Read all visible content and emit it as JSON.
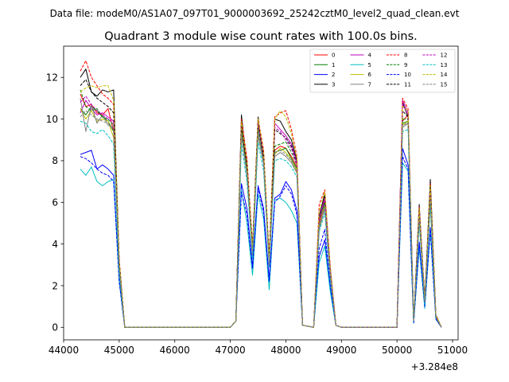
{
  "chart_data": {
    "type": "line",
    "suptitle": "Data file: modeM0/AS1A07_097T01_9000003692_25242cztM0_level2_quad_clean.evt",
    "title": "Quadrant 3 module wise count rates with 100.0s bins.",
    "xlabel": "",
    "ylabel": "",
    "x_offset_label": "+3.284e8",
    "xlim": [
      44000,
      51100
    ],
    "ylim": [
      -0.6,
      13.5
    ],
    "x_ticks": [
      44000,
      45000,
      46000,
      47000,
      48000,
      49000,
      50000,
      51000
    ],
    "y_ticks": [
      0,
      2,
      4,
      6,
      8,
      10,
      12
    ],
    "grid": false,
    "legend": {
      "placement": "top-right",
      "columns": 4
    },
    "x": [
      44300,
      44400,
      44500,
      44600,
      44700,
      44800,
      44900,
      45000,
      45100,
      45200,
      45300,
      45400,
      45500,
      45600,
      45700,
      45800,
      45900,
      46000,
      46100,
      46200,
      46300,
      46400,
      46500,
      46600,
      46700,
      46800,
      46900,
      47000,
      47100,
      47200,
      47300,
      47400,
      47500,
      47600,
      47700,
      47800,
      47900,
      48000,
      48100,
      48200,
      48300,
      48400,
      48500,
      48600,
      48700,
      48800,
      48900,
      49000,
      49100,
      49200,
      49300,
      49400,
      49500,
      49600,
      49700,
      49800,
      49900,
      50000,
      50100,
      50200,
      50300,
      50400,
      50500,
      50600,
      50700,
      50800
    ],
    "series": [
      {
        "name": "0",
        "color": "#ff0000",
        "dash": "solid",
        "values": [
          11.2,
          10.6,
          10.7,
          10.3,
          10.2,
          10.5,
          9.4,
          3.0,
          0.0,
          0.0,
          0.0,
          0.0,
          0.0,
          0.0,
          0.0,
          0.0,
          0.0,
          0.0,
          0.0,
          0.0,
          0.0,
          0.0,
          0.0,
          0.0,
          0.0,
          0.0,
          0.0,
          0.0,
          0.3,
          9.8,
          7.8,
          3.6,
          9.9,
          8.1,
          3.1,
          8.5,
          8.7,
          8.6,
          8.2,
          7.7,
          0.1,
          0.05,
          0.0,
          5.0,
          6.1,
          2.6,
          0.1,
          0.0,
          0.0,
          0.0,
          0.0,
          0.0,
          0.0,
          0.0,
          0.0,
          0.0,
          0.0,
          0.0,
          9.9,
          10.2,
          0.3,
          5.4,
          1.2,
          6.3,
          0.5,
          0.0
        ]
      },
      {
        "name": "1",
        "color": "#008000",
        "dash": "solid",
        "values": [
          10.5,
          10.2,
          10.6,
          10.4,
          10.1,
          9.9,
          9.4,
          2.9,
          0.0,
          0.0,
          0.0,
          0.0,
          0.0,
          0.0,
          0.0,
          0.0,
          0.0,
          0.0,
          0.0,
          0.0,
          0.0,
          0.0,
          0.0,
          0.0,
          0.0,
          0.0,
          0.0,
          0.0,
          0.3,
          9.5,
          7.5,
          3.5,
          9.4,
          8.0,
          3.0,
          8.4,
          8.5,
          8.6,
          8.1,
          7.6,
          0.1,
          0.05,
          0.0,
          4.8,
          5.9,
          2.5,
          0.1,
          0.0,
          0.0,
          0.0,
          0.0,
          0.0,
          0.0,
          0.0,
          0.0,
          0.0,
          0.0,
          0.0,
          9.8,
          9.9,
          0.3,
          5.3,
          1.2,
          6.2,
          0.5,
          0.0
        ]
      },
      {
        "name": "2",
        "color": "#0000ff",
        "dash": "solid",
        "values": [
          8.3,
          8.4,
          8.5,
          7.6,
          7.8,
          7.6,
          7.3,
          2.3,
          0.0,
          0.0,
          0.0,
          0.0,
          0.0,
          0.0,
          0.0,
          0.0,
          0.0,
          0.0,
          0.0,
          0.0,
          0.0,
          0.0,
          0.0,
          0.0,
          0.0,
          0.0,
          0.0,
          0.0,
          0.3,
          6.9,
          5.7,
          2.9,
          6.8,
          5.7,
          2.3,
          6.2,
          6.4,
          7.0,
          6.6,
          5.6,
          0.1,
          0.05,
          0.0,
          3.4,
          4.2,
          1.9,
          0.1,
          0.0,
          0.0,
          0.0,
          0.0,
          0.0,
          0.0,
          0.0,
          0.0,
          0.0,
          0.0,
          0.0,
          8.6,
          7.8,
          0.2,
          4.1,
          1.0,
          4.8,
          0.4,
          0.0
        ]
      },
      {
        "name": "3",
        "color": "#000000",
        "dash": "solid",
        "values": [
          12.0,
          12.4,
          11.3,
          11.1,
          11.4,
          11.3,
          11.4,
          3.2,
          0.0,
          0.0,
          0.0,
          0.0,
          0.0,
          0.0,
          0.0,
          0.0,
          0.0,
          0.0,
          0.0,
          0.0,
          0.0,
          0.0,
          0.0,
          0.0,
          0.0,
          0.0,
          0.0,
          0.0,
          0.3,
          10.2,
          7.8,
          3.8,
          10.1,
          8.0,
          3.3,
          10.0,
          9.9,
          9.4,
          9.0,
          8.0,
          0.1,
          0.05,
          0.0,
          5.3,
          6.4,
          2.8,
          0.1,
          0.0,
          0.0,
          0.0,
          0.0,
          0.0,
          0.0,
          0.0,
          0.0,
          0.0,
          0.0,
          0.0,
          10.8,
          10.1,
          0.3,
          5.9,
          1.3,
          7.1,
          0.6,
          0.0
        ]
      },
      {
        "name": "4",
        "color": "#bf00bf",
        "dash": "solid",
        "values": [
          10.3,
          10.9,
          10.5,
          10.2,
          10.3,
          10.1,
          9.9,
          3.1,
          0.0,
          0.0,
          0.0,
          0.0,
          0.0,
          0.0,
          0.0,
          0.0,
          0.0,
          0.0,
          0.0,
          0.0,
          0.0,
          0.0,
          0.0,
          0.0,
          0.0,
          0.0,
          0.0,
          0.0,
          0.3,
          9.9,
          8.0,
          3.7,
          9.9,
          8.3,
          3.2,
          9.8,
          9.5,
          9.2,
          8.8,
          7.9,
          0.1,
          0.05,
          0.0,
          5.1,
          6.2,
          2.7,
          0.1,
          0.0,
          0.0,
          0.0,
          0.0,
          0.0,
          0.0,
          0.0,
          0.0,
          0.0,
          0.0,
          0.0,
          10.9,
          10.3,
          0.3,
          5.7,
          1.3,
          6.6,
          0.5,
          0.0
        ]
      },
      {
        "name": "5",
        "color": "#00bfbf",
        "dash": "solid",
        "values": [
          7.6,
          7.3,
          7.7,
          7.0,
          6.8,
          7.0,
          7.1,
          2.2,
          0.0,
          0.0,
          0.0,
          0.0,
          0.0,
          0.0,
          0.0,
          0.0,
          0.0,
          0.0,
          0.0,
          0.0,
          0.0,
          0.0,
          0.0,
          0.0,
          0.0,
          0.0,
          0.0,
          0.0,
          0.3,
          6.6,
          5.0,
          2.5,
          6.4,
          5.2,
          1.8,
          6.1,
          6.2,
          6.0,
          5.6,
          5.0,
          0.1,
          0.05,
          0.0,
          3.1,
          3.9,
          1.7,
          0.1,
          0.0,
          0.0,
          0.0,
          0.0,
          0.0,
          0.0,
          0.0,
          0.0,
          0.0,
          0.0,
          0.0,
          7.9,
          7.5,
          0.2,
          3.8,
          0.9,
          4.6,
          0.4,
          0.0
        ]
      },
      {
        "name": "6",
        "color": "#bfbf00",
        "dash": "solid",
        "values": [
          10.5,
          10.0,
          10.4,
          9.9,
          10.0,
          9.9,
          9.1,
          2.8,
          0.0,
          0.0,
          0.0,
          0.0,
          0.0,
          0.0,
          0.0,
          0.0,
          0.0,
          0.0,
          0.0,
          0.0,
          0.0,
          0.0,
          0.0,
          0.0,
          0.0,
          0.0,
          0.0,
          0.0,
          0.3,
          9.4,
          7.4,
          3.5,
          9.3,
          7.9,
          3.0,
          8.3,
          8.6,
          8.4,
          8.0,
          7.5,
          0.1,
          0.05,
          0.0,
          4.9,
          5.8,
          2.5,
          0.1,
          0.0,
          0.0,
          0.0,
          0.0,
          0.0,
          0.0,
          0.0,
          0.0,
          0.0,
          0.0,
          0.0,
          9.7,
          9.9,
          0.3,
          5.2,
          1.2,
          6.1,
          0.5,
          0.0
        ]
      },
      {
        "name": "7",
        "color": "#808080",
        "dash": "solid",
        "values": [
          11.0,
          9.4,
          10.7,
          9.8,
          10.2,
          9.7,
          9.6,
          3.0,
          0.0,
          0.0,
          0.0,
          0.0,
          0.0,
          0.0,
          0.0,
          0.0,
          0.0,
          0.0,
          0.0,
          0.0,
          0.0,
          0.0,
          0.0,
          0.0,
          0.0,
          0.0,
          0.0,
          0.0,
          0.3,
          9.2,
          7.3,
          3.4,
          9.2,
          7.8,
          3.0,
          8.2,
          8.4,
          8.2,
          7.9,
          7.4,
          0.1,
          0.05,
          0.0,
          4.7,
          5.7,
          2.4,
          0.1,
          0.0,
          0.0,
          0.0,
          0.0,
          0.0,
          0.0,
          0.0,
          0.0,
          0.0,
          0.0,
          0.0,
          9.6,
          9.8,
          0.3,
          5.1,
          1.2,
          6.0,
          0.5,
          0.0
        ]
      },
      {
        "name": "8",
        "color": "#ff0000",
        "dash": "dashed",
        "values": [
          12.3,
          12.8,
          12.0,
          11.6,
          11.2,
          11.0,
          10.7,
          3.3,
          0.0,
          0.0,
          0.0,
          0.0,
          0.0,
          0.0,
          0.0,
          0.0,
          0.0,
          0.0,
          0.0,
          0.0,
          0.0,
          0.0,
          0.0,
          0.0,
          0.0,
          0.0,
          0.0,
          0.0,
          0.3,
          10.0,
          8.1,
          3.9,
          10.0,
          8.5,
          3.4,
          10.1,
          10.3,
          10.4,
          9.5,
          8.2,
          0.1,
          0.05,
          0.0,
          5.9,
          6.6,
          2.9,
          0.1,
          0.0,
          0.0,
          0.0,
          0.0,
          0.0,
          0.0,
          0.0,
          0.0,
          0.0,
          0.0,
          0.0,
          11.0,
          10.5,
          0.3,
          5.8,
          1.3,
          6.9,
          0.6,
          0.0
        ]
      },
      {
        "name": "9",
        "color": "#008000",
        "dash": "dashed",
        "values": [
          11.4,
          10.6,
          10.4,
          10.5,
          10.1,
          10.0,
          9.7,
          3.0,
          0.0,
          0.0,
          0.0,
          0.0,
          0.0,
          0.0,
          0.0,
          0.0,
          0.0,
          0.0,
          0.0,
          0.0,
          0.0,
          0.0,
          0.0,
          0.0,
          0.0,
          0.0,
          0.0,
          0.0,
          0.3,
          9.6,
          7.6,
          3.6,
          9.6,
          8.1,
          3.1,
          8.7,
          8.8,
          8.9,
          8.4,
          7.8,
          0.1,
          0.05,
          0.0,
          5.2,
          6.0,
          2.6,
          0.1,
          0.0,
          0.0,
          0.0,
          0.0,
          0.0,
          0.0,
          0.0,
          0.0,
          0.0,
          0.0,
          0.0,
          10.0,
          10.0,
          0.3,
          5.5,
          1.2,
          6.4,
          0.5,
          0.0
        ]
      },
      {
        "name": "10",
        "color": "#0000ff",
        "dash": "dashed",
        "values": [
          8.2,
          8.1,
          7.9,
          7.6,
          7.4,
          7.3,
          7.0,
          2.2,
          0.0,
          0.0,
          0.0,
          0.0,
          0.0,
          0.0,
          0.0,
          0.0,
          0.0,
          0.0,
          0.0,
          0.0,
          0.0,
          0.0,
          0.0,
          0.0,
          0.0,
          0.0,
          0.0,
          0.0,
          0.3,
          6.5,
          5.4,
          2.8,
          6.7,
          5.5,
          2.2,
          6.0,
          6.3,
          6.8,
          6.4,
          5.4,
          0.1,
          0.05,
          0.0,
          3.8,
          4.7,
          2.0,
          0.1,
          0.0,
          0.0,
          0.0,
          0.0,
          0.0,
          0.0,
          0.0,
          0.0,
          0.0,
          0.0,
          0.0,
          8.2,
          7.6,
          0.2,
          4.0,
          1.0,
          4.7,
          0.4,
          0.0
        ]
      },
      {
        "name": "11",
        "color": "#000000",
        "dash": "dashed",
        "values": [
          11.6,
          11.9,
          11.3,
          11.0,
          10.8,
          10.6,
          10.3,
          3.1,
          0.0,
          0.0,
          0.0,
          0.0,
          0.0,
          0.0,
          0.0,
          0.0,
          0.0,
          0.0,
          0.0,
          0.0,
          0.0,
          0.0,
          0.0,
          0.0,
          0.0,
          0.0,
          0.0,
          0.0,
          0.3,
          9.7,
          7.7,
          3.7,
          9.8,
          8.2,
          3.2,
          9.5,
          9.3,
          9.1,
          8.7,
          7.8,
          0.1,
          0.05,
          0.0,
          5.4,
          6.3,
          2.7,
          0.1,
          0.0,
          0.0,
          0.0,
          0.0,
          0.0,
          0.0,
          0.0,
          0.0,
          0.0,
          0.0,
          0.0,
          10.4,
          10.1,
          0.3,
          5.6,
          1.3,
          6.7,
          0.5,
          0.0
        ]
      },
      {
        "name": "12",
        "color": "#bf00bf",
        "dash": "dashed",
        "values": [
          10.8,
          11.1,
          10.7,
          10.4,
          10.2,
          10.0,
          9.8,
          3.0,
          0.0,
          0.0,
          0.0,
          0.0,
          0.0,
          0.0,
          0.0,
          0.0,
          0.0,
          0.0,
          0.0,
          0.0,
          0.0,
          0.0,
          0.0,
          0.0,
          0.0,
          0.0,
          0.0,
          0.0,
          0.3,
          9.8,
          7.9,
          3.6,
          9.8,
          8.2,
          3.1,
          9.6,
          9.4,
          9.0,
          8.6,
          7.8,
          0.1,
          0.05,
          0.0,
          5.3,
          6.2,
          2.7,
          0.1,
          0.0,
          0.0,
          0.0,
          0.0,
          0.0,
          0.0,
          0.0,
          0.0,
          0.0,
          0.0,
          0.0,
          10.7,
          10.2,
          0.3,
          5.6,
          1.3,
          6.5,
          0.5,
          0.0
        ]
      },
      {
        "name": "13",
        "color": "#00bfbf",
        "dash": "dashed",
        "values": [
          9.9,
          9.8,
          9.4,
          9.3,
          9.5,
          9.2,
          8.8,
          2.7,
          0.0,
          0.0,
          0.0,
          0.0,
          0.0,
          0.0,
          0.0,
          0.0,
          0.0,
          0.0,
          0.0,
          0.0,
          0.0,
          0.0,
          0.0,
          0.0,
          0.0,
          0.0,
          0.0,
          0.0,
          0.3,
          8.8,
          7.0,
          3.3,
          8.9,
          7.5,
          2.9,
          8.0,
          8.1,
          8.0,
          7.7,
          7.2,
          0.1,
          0.05,
          0.0,
          4.6,
          5.5,
          2.3,
          0.1,
          0.0,
          0.0,
          0.0,
          0.0,
          0.0,
          0.0,
          0.0,
          0.0,
          0.0,
          0.0,
          0.0,
          9.4,
          9.5,
          0.3,
          5.0,
          1.1,
          5.9,
          0.5,
          0.0
        ]
      },
      {
        "name": "14",
        "color": "#bfbf00",
        "dash": "dashed",
        "values": [
          11.3,
          11.5,
          11.6,
          11.5,
          11.6,
          11.6,
          10.9,
          3.2,
          0.0,
          0.0,
          0.0,
          0.0,
          0.0,
          0.0,
          0.0,
          0.0,
          0.0,
          0.0,
          0.0,
          0.0,
          0.0,
          0.0,
          0.0,
          0.0,
          0.0,
          0.0,
          0.0,
          0.0,
          0.3,
          9.9,
          7.9,
          3.8,
          10.0,
          8.4,
          3.3,
          10.0,
          10.4,
          10.1,
          9.3,
          8.1,
          0.1,
          0.05,
          0.0,
          5.6,
          6.5,
          2.8,
          0.1,
          0.0,
          0.0,
          0.0,
          0.0,
          0.0,
          0.0,
          0.0,
          0.0,
          0.0,
          0.0,
          0.0,
          10.6,
          10.4,
          0.3,
          5.7,
          1.3,
          6.8,
          0.6,
          0.0
        ]
      },
      {
        "name": "15",
        "color": "#808080",
        "dash": "dashed",
        "values": [
          10.1,
          10.4,
          10.2,
          10.0,
          9.9,
          9.8,
          9.5,
          2.9,
          0.0,
          0.0,
          0.0,
          0.0,
          0.0,
          0.0,
          0.0,
          0.0,
          0.0,
          0.0,
          0.0,
          0.0,
          0.0,
          0.0,
          0.0,
          0.0,
          0.0,
          0.0,
          0.0,
          0.0,
          0.3,
          9.3,
          7.4,
          3.5,
          9.4,
          7.9,
          3.0,
          8.4,
          8.5,
          8.3,
          8.0,
          7.4,
          0.1,
          0.05,
          0.0,
          4.9,
          5.8,
          2.5,
          0.1,
          0.0,
          0.0,
          0.0,
          0.0,
          0.0,
          0.0,
          0.0,
          0.0,
          0.0,
          0.0,
          0.0,
          9.7,
          9.8,
          0.3,
          5.2,
          1.2,
          6.1,
          0.5,
          0.0
        ]
      }
    ]
  }
}
